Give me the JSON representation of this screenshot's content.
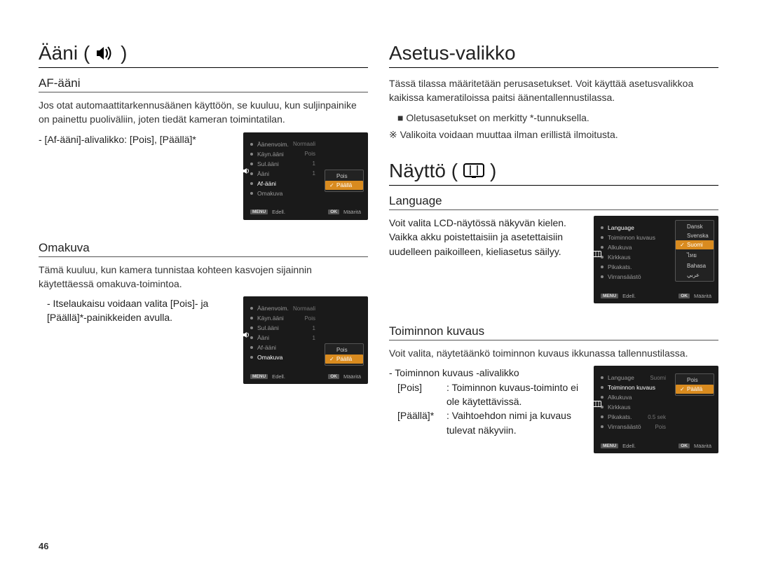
{
  "page_number": "46",
  "left": {
    "title": "Ääni (",
    "title_close": ")",
    "sections": [
      {
        "heading": "AF-ääni",
        "body": "Jos otat automaattitarkennusäänen käyttöön, se kuuluu, kun suljinpainike on painettu puoliväliin, joten tiedät kameran toimintatilan.",
        "sub_line": "- [Af-ääni]-alivalikko: [Pois], [Päällä]*",
        "menu": {
          "items": [
            {
              "label": "Äänenvoim.",
              "val": "Normaali"
            },
            {
              "label": "Käyn.ääni",
              "val": "Pois"
            },
            {
              "label": "Sul.ääni",
              "val": "1"
            },
            {
              "label": "Ääni",
              "val": "1"
            },
            {
              "label": "Af-ääni",
              "val": "",
              "hl": true
            },
            {
              "label": "Omakuva",
              "val": ""
            }
          ],
          "sel_index": 4,
          "options": [
            {
              "label": "Pois"
            },
            {
              "label": "Päällä",
              "selected": true
            }
          ],
          "footer": {
            "left_key": "MENU",
            "left": "Edell.",
            "right_key": "OK",
            "right": "Määritä"
          },
          "side_icon": "sound"
        }
      },
      {
        "heading": "Omakuva",
        "body": "Tämä kuuluu, kun kamera tunnistaa kohteen kasvojen sijainnin käytettäessä omakuva-toimintoa.",
        "sub_line": "- Itselaukaisu voidaan valita [Pois]- ja [Päällä]*-painikkeiden avulla.",
        "menu": {
          "items": [
            {
              "label": "Äänenvoim.",
              "val": "Normaali"
            },
            {
              "label": "Käyn.ääni",
              "val": "Pois"
            },
            {
              "label": "Sul.ääni",
              "val": "1"
            },
            {
              "label": "Ääni",
              "val": "1"
            },
            {
              "label": "Af-ääni",
              "val": ""
            },
            {
              "label": "Omakuva",
              "val": "",
              "hl": true
            }
          ],
          "sel_index": 5,
          "options": [
            {
              "label": "Pois"
            },
            {
              "label": "Päällä",
              "selected": true
            }
          ],
          "footer": {
            "left_key": "MENU",
            "left": "Edell.",
            "right_key": "OK",
            "right": "Määritä"
          },
          "side_icon": "sound"
        }
      }
    ]
  },
  "right": {
    "title1": "Asetus-valikko",
    "intro": "Tässä tilassa määritetään perusasetukset. Voit käyttää asetusvalikkoa kaikissa kameratiloissa paitsi äänentallennustilassa.",
    "bullet1": "Oletusasetukset on merkitty *-tunnuksella.",
    "note_mark": "※",
    "note": "Valikoita voidaan muuttaa ilman erillistä ilmoitusta.",
    "title2": "Näyttö (",
    "title2_close": ")",
    "sections": [
      {
        "heading": "Language",
        "body": "Voit valita LCD-näytössä näkyvän kielen. Vaikka akku poistettaisiin ja asetettaisiin uudelleen paikoilleen, kieliasetus säilyy.",
        "menu": {
          "items": [
            {
              "label": "Language",
              "val": "",
              "hl": true
            },
            {
              "label": "Toiminnon kuvaus",
              "val": ""
            },
            {
              "label": "Alkukuva",
              "val": ""
            },
            {
              "label": "Kirkkaus",
              "val": ""
            },
            {
              "label": "Pikakats.",
              "val": ""
            },
            {
              "label": "Virransäästö",
              "val": ""
            }
          ],
          "sel_index": 0,
          "options": [
            {
              "label": "Dansk"
            },
            {
              "label": "Svenska"
            },
            {
              "label": "Suomi",
              "selected": true
            },
            {
              "label": "ไทย"
            },
            {
              "label": "Bahasa"
            },
            {
              "label": "عربي"
            }
          ],
          "footer": {
            "left_key": "MENU",
            "left": "Edell.",
            "right_key": "OK",
            "right": "Määritä"
          },
          "side_icon": "display"
        }
      },
      {
        "heading": "Toiminnon kuvaus",
        "body": "Voit valita, näytetäänkö toiminnon kuvaus ikkunassa tallennustilassa.",
        "sub_line": "- Toiminnon kuvaus -alivalikko",
        "opts": [
          {
            "k": "[Pois]",
            "v": ": Toiminnon kuvaus-toiminto ei ole käytettävissä."
          },
          {
            "k": "[Päällä]*",
            "v": ": Vaihtoehdon nimi ja kuvaus tulevat näkyviin."
          }
        ],
        "menu": {
          "items": [
            {
              "label": "Language",
              "val": "Suomi"
            },
            {
              "label": "Toiminnon kuvaus",
              "val": "",
              "hl": true
            },
            {
              "label": "Alkukuva",
              "val": ""
            },
            {
              "label": "Kirkkaus",
              "val": ""
            },
            {
              "label": "Pikakats.",
              "val": "0.5 sek"
            },
            {
              "label": "Virransäästö",
              "val": "Pois"
            }
          ],
          "sel_index": 1,
          "options": [
            {
              "label": "Pois"
            },
            {
              "label": "Päällä",
              "selected": true
            }
          ],
          "footer": {
            "left_key": "MENU",
            "left": "Edell.",
            "right_key": "OK",
            "right": "Määritä"
          },
          "side_icon": "display"
        }
      }
    ]
  }
}
